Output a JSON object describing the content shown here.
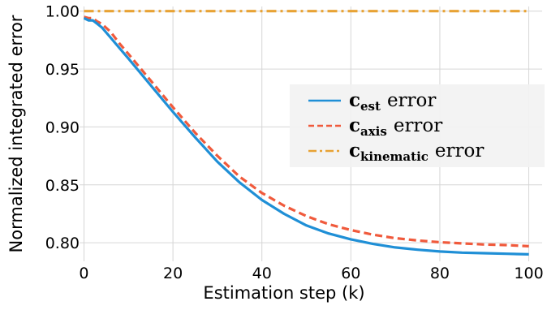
{
  "chart_data": {
    "type": "line",
    "xlabel": "Estimation step (k)",
    "ylabel": "Normalized integrated error",
    "xlim": [
      -1,
      103
    ],
    "ylim": [
      0.784,
      1.004
    ],
    "xticks": [
      0,
      20,
      40,
      60,
      80,
      100
    ],
    "yticks": [
      0.8,
      0.85,
      0.9,
      0.95,
      1.0
    ],
    "xtick_labels": [
      "0",
      "20",
      "40",
      "60",
      "80",
      "100"
    ],
    "ytick_labels": [
      "0.80",
      "0.85",
      "0.90",
      "0.95",
      "1.00"
    ],
    "grid": true,
    "legend_position": "right",
    "series": [
      {
        "symbol": "c",
        "subscript": "est",
        "suffix": "error",
        "color": "#1f8fd6",
        "dash": "solid",
        "x": [
          0,
          1,
          2,
          3,
          4,
          6,
          8,
          10,
          15,
          20,
          25,
          30,
          35,
          40,
          45,
          50,
          55,
          60,
          65,
          70,
          75,
          80,
          85,
          90,
          95,
          100
        ],
        "y": [
          0.994,
          0.992,
          0.992,
          0.989,
          0.986,
          0.977,
          0.968,
          0.959,
          0.936,
          0.913,
          0.891,
          0.87,
          0.852,
          0.837,
          0.825,
          0.815,
          0.808,
          0.803,
          0.799,
          0.796,
          0.794,
          0.7925,
          0.7915,
          0.791,
          0.7905,
          0.79
        ]
      },
      {
        "symbol": "c",
        "subscript": "axis",
        "suffix": "error",
        "color": "#f05a3c",
        "dash": "dashed",
        "x": [
          0,
          1,
          2,
          3,
          4,
          6,
          8,
          10,
          15,
          20,
          25,
          30,
          35,
          40,
          45,
          50,
          55,
          60,
          65,
          70,
          75,
          80,
          85,
          90,
          95,
          100
        ],
        "y": [
          0.995,
          0.994,
          0.994,
          0.991,
          0.989,
          0.982,
          0.972,
          0.963,
          0.94,
          0.917,
          0.895,
          0.875,
          0.857,
          0.843,
          0.832,
          0.823,
          0.816,
          0.811,
          0.807,
          0.804,
          0.802,
          0.8005,
          0.7995,
          0.7985,
          0.798,
          0.797
        ]
      },
      {
        "symbol": "c",
        "subscript": "kinematic",
        "suffix": "error",
        "color": "#e8a234",
        "dash": "dashdot",
        "x": [
          0,
          100
        ],
        "y": [
          1.0,
          1.0
        ]
      }
    ]
  }
}
